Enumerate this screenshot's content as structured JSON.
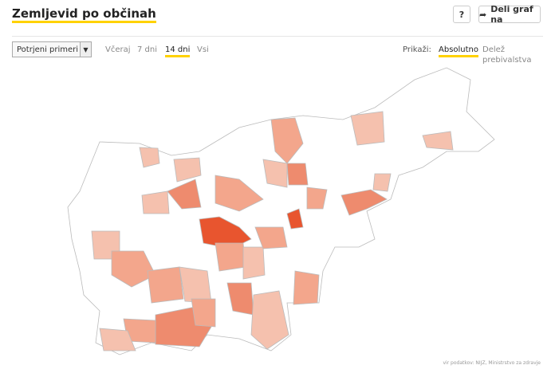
{
  "header": {
    "title": "Zemljevid po občinah",
    "help_button": "?",
    "share_button": "Deli graf na"
  },
  "controls": {
    "dropdown": "Potrjeni primeri",
    "ranges": [
      "Včeraj",
      "7 dni",
      "14 dni",
      "Vsi"
    ],
    "show_label": "Prikaži:",
    "modes": [
      "Absolutno",
      "Delež prebivalstva"
    ]
  },
  "footer": {
    "source": "vir podatkov: NIJZ, Ministrstvo za zdravje"
  }
}
